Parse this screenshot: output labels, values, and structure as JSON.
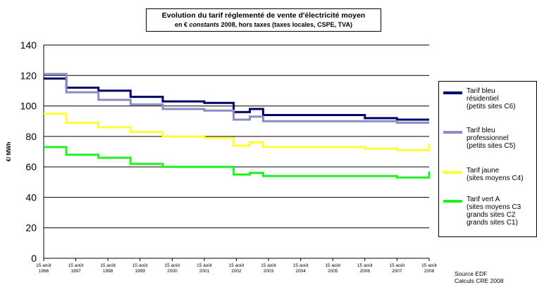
{
  "title": {
    "line1": "Evolution du tarif réglementé de vente d'électricité moyen",
    "line2_prefix": "en € ",
    "line2_italic": "constants",
    "line2_suffix": " 2008, hors taxes (taxes locales, CSPE, TVA)"
  },
  "source": "Source EDF\nCalculs CRE 2008",
  "chart_data": {
    "type": "line",
    "step": true,
    "ylabel": "€/ MWh",
    "ylim": [
      0,
      140
    ],
    "yticks": [
      0,
      20,
      40,
      60,
      80,
      100,
      120,
      140
    ],
    "grid": true,
    "legend_position": "right",
    "x_ticks": [
      "15 août\n1996",
      "15 août\n1997",
      "15 août\n1998",
      "15 août\n1999",
      "15 août\n2000",
      "15 août\n2001",
      "15 août\n2002",
      "15 août\n2003",
      "15 août\n2004",
      "15 août\n2005",
      "15 août\n2006",
      "15 août\n2007",
      "15 août\n2008"
    ],
    "series": [
      {
        "name": "Tarif bleu\nrésidentiel\n(petits sites C6)",
        "color": "#000066",
        "points": [
          {
            "x": "1996-08-15",
            "y": 118
          },
          {
            "x": "1997-04-30",
            "y": 112
          },
          {
            "x": "1998-04-30",
            "y": 110
          },
          {
            "x": "1999-04-30",
            "y": 106
          },
          {
            "x": "2000-04-30",
            "y": 103
          },
          {
            "x": "2001-08-15",
            "y": 102
          },
          {
            "x": "2002-07-15",
            "y": 96
          },
          {
            "x": "2003-01-15",
            "y": 98
          },
          {
            "x": "2003-06-15",
            "y": 94
          },
          {
            "x": "2006-08-15",
            "y": 92
          },
          {
            "x": "2007-08-15",
            "y": 91
          },
          {
            "x": "2008-08-15",
            "y": 91
          }
        ]
      },
      {
        "name": "Tarif bleu\nprofessionnel\n(petits sites C5)",
        "color": "#8c8cc4",
        "points": [
          {
            "x": "1996-08-15",
            "y": 121
          },
          {
            "x": "1997-04-30",
            "y": 109
          },
          {
            "x": "1998-04-30",
            "y": 104
          },
          {
            "x": "1999-04-30",
            "y": 101
          },
          {
            "x": "2000-04-30",
            "y": 98
          },
          {
            "x": "2001-08-15",
            "y": 97
          },
          {
            "x": "2002-07-15",
            "y": 91
          },
          {
            "x": "2003-01-15",
            "y": 93
          },
          {
            "x": "2003-06-15",
            "y": 90
          },
          {
            "x": "2006-08-15",
            "y": 90
          },
          {
            "x": "2007-08-15",
            "y": 89
          },
          {
            "x": "2008-08-15",
            "y": 89
          }
        ]
      },
      {
        "name": "Tarif jaune\n(sites moyens C4)",
        "color": "#ffff33",
        "points": [
          {
            "x": "1996-08-15",
            "y": 95
          },
          {
            "x": "1997-04-30",
            "y": 89
          },
          {
            "x": "1998-04-30",
            "y": 86
          },
          {
            "x": "1999-04-30",
            "y": 83
          },
          {
            "x": "2000-04-30",
            "y": 80
          },
          {
            "x": "2001-08-15",
            "y": 79
          },
          {
            "x": "2002-07-15",
            "y": 74
          },
          {
            "x": "2003-01-15",
            "y": 76
          },
          {
            "x": "2003-06-15",
            "y": 73
          },
          {
            "x": "2006-08-15",
            "y": 72
          },
          {
            "x": "2007-08-15",
            "y": 71
          },
          {
            "x": "2008-08-15",
            "y": 75
          }
        ]
      },
      {
        "name": "Tarif vert A\n(sites moyens C3\ngrands sites C2\ngrands sites C1)",
        "color": "#22ee22",
        "points": [
          {
            "x": "1996-08-15",
            "y": 73
          },
          {
            "x": "1997-04-30",
            "y": 68
          },
          {
            "x": "1998-04-30",
            "y": 66
          },
          {
            "x": "1999-04-30",
            "y": 62
          },
          {
            "x": "2000-04-30",
            "y": 60
          },
          {
            "x": "2001-08-15",
            "y": 60
          },
          {
            "x": "2002-07-15",
            "y": 55
          },
          {
            "x": "2003-01-15",
            "y": 56
          },
          {
            "x": "2003-06-15",
            "y": 54
          },
          {
            "x": "2006-08-15",
            "y": 54
          },
          {
            "x": "2007-08-15",
            "y": 53
          },
          {
            "x": "2008-08-15",
            "y": 57
          }
        ]
      }
    ]
  }
}
